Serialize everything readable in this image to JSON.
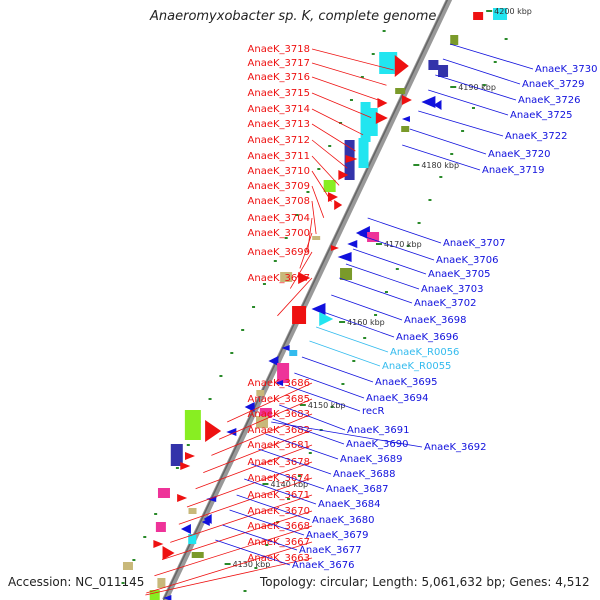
{
  "title": "Anaeromyxobacter sp. K, complete genome",
  "accession": "Accession: NC_011145",
  "summary": "Topology: circular; Length: 5,061,632 bp; Genes: 4,512",
  "colors": {
    "forward": "#ee1111",
    "reverse": "#1111dd",
    "rna": "#33bbee",
    "cyan": "#22e5f0",
    "olive": "#7a9a2a",
    "magenta": "#ee3399",
    "lime": "#88ee22",
    "navy": "#3333aa",
    "tan": "#c8b87a",
    "backbone": "#888888"
  },
  "scale_marks": [
    "4200 kbp",
    "4190 kbp",
    "4180 kbp",
    "4170 kbp",
    "4160 kbp",
    "4150 kbp",
    "4140 kbp",
    "4130 kbp"
  ],
  "left_labels": [
    "AnaeK_3718",
    "AnaeK_3717",
    "AnaeK_3716",
    "AnaeK_3715",
    "AnaeK_3714",
    "AnaeK_3713",
    "AnaeK_3712",
    "AnaeK_3711",
    "AnaeK_3710",
    "AnaeK_3709",
    "AnaeK_3708",
    "AnaeK_3704",
    "AnaeK_3700",
    "AnaeK_3699",
    "AnaeK_3697",
    "AnaeK_3686",
    "AnaeK_3685",
    "AnaeK_3683",
    "AnaeK_3682",
    "AnaeK_3681",
    "AnaeK_3678",
    "AnaeK_3674",
    "AnaeK_3671",
    "AnaeK_3670",
    "AnaeK_3668",
    "AnaeK_3667",
    "AnaeK_3663"
  ],
  "right_labels": [
    "AnaeK_3730",
    "AnaeK_3729",
    "AnaeK_3726",
    "AnaeK_3725",
    "AnaeK_3722",
    "AnaeK_3720",
    "AnaeK_3719",
    "AnaeK_3707",
    "AnaeK_3706",
    "AnaeK_3705",
    "AnaeK_3703",
    "AnaeK_3702",
    "AnaeK_3698",
    "AnaeK_3696",
    "AnaeK_R0056",
    "AnaeK_R0055",
    "AnaeK_3695",
    "AnaeK_3694",
    "recR",
    "AnaeK_3691",
    "AnaeK_3690",
    "AnaeK_3692",
    "AnaeK_3689",
    "AnaeK_3688",
    "AnaeK_3687",
    "AnaeK_3684",
    "AnaeK_3680",
    "AnaeK_3679",
    "AnaeK_3677",
    "AnaeK_3676"
  ],
  "rna_labels": [
    "AnaeK_R0056",
    "AnaeK_R0055"
  ]
}
